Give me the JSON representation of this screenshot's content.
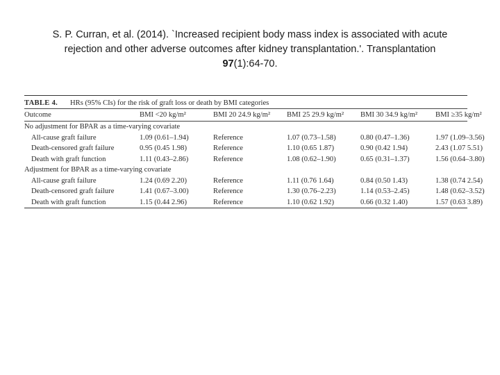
{
  "citation": {
    "line1": "S. P. Curran, et al. (2014). `Increased recipient body mass index is associated with acute",
    "line2": "rejection and other adverse outcomes after kidney transplantation.'. Transplantation",
    "volume": "97",
    "issue_pages": "(1):64-70."
  },
  "table": {
    "label": "TABLE 4.",
    "title": "HRs (95% CIs) for the risk of graft loss or death by BMI categories",
    "headers": [
      "Outcome",
      "BMI <20 kg/m²",
      "BMI 20  24.9 kg/m²",
      "BMI 25  29.9 kg/m²",
      "BMI 30  34.9 kg/m²",
      "BMI ≥35 kg/m²"
    ],
    "sections": [
      {
        "title": "No adjustment for BPAR as a time-varying covariate",
        "rows": [
          [
            "All-cause graft failure",
            "1.09 (0.61–1.94)",
            "Reference",
            "1.07 (0.73–1.58)",
            "0.80 (0.47–1.36)",
            "1.97 (1.09–3.56)"
          ],
          [
            "Death-censored graft failure",
            "0.95 (0.45  1.98)",
            "Reference",
            "1.10 (0.65  1.87)",
            "0.90 (0.42  1.94)",
            "2.43 (1.07  5.51)"
          ],
          [
            "Death with graft function",
            "1.11 (0.43–2.86)",
            "Reference",
            "1.08 (0.62–1.90)",
            "0.65 (0.31–1.37)",
            "1.56 (0.64–3.80)"
          ]
        ]
      },
      {
        "title": "Adjustment for BPAR as a time-varying covariate",
        "rows": [
          [
            "All-cause graft failure",
            "1.24 (0.69  2.20)",
            "Reference",
            "1.11 (0.76  1.64)",
            "0.84 (0.50  1.43)",
            "1.38 (0.74  2.54)"
          ],
          [
            "Death-censored graft failure",
            "1.41 (0.67–3.00)",
            "Reference",
            "1.30 (0.76–2.23)",
            "1.14 (0.53–2.45)",
            "1.48 (0.62–3.52)"
          ],
          [
            "Death with graft function",
            "1.15 (0.44  2.96)",
            "Reference",
            "1.10 (0.62  1.92)",
            "0.66 (0.32  1.40)",
            "1.57 (0.63  3.89)"
          ]
        ]
      }
    ]
  }
}
